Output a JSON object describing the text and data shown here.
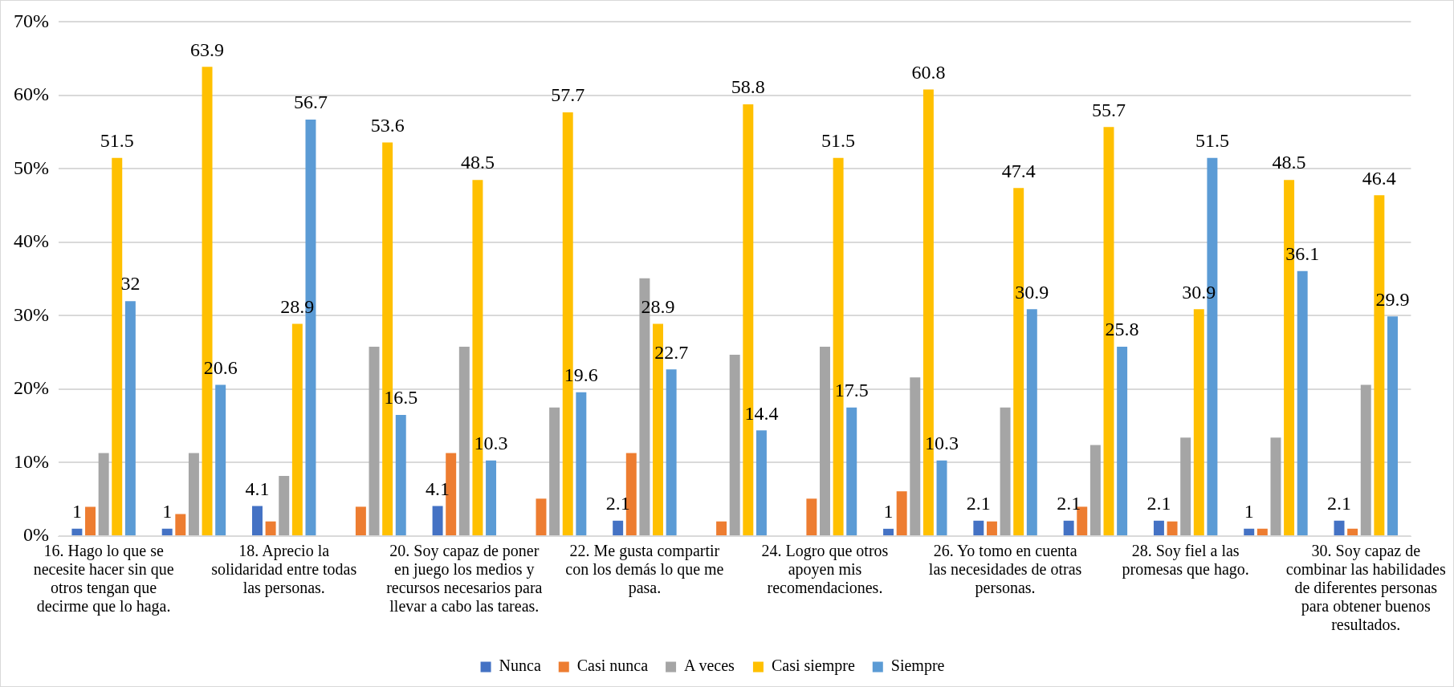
{
  "chart_data": {
    "type": "bar",
    "categories": [
      "16. Hago lo que se necesite hacer sin que otros tengan que decirme que lo haga.",
      null,
      "18. Aprecio la solidaridad entre todas las personas.",
      null,
      "20. Soy capaz de poner en juego los medios y recursos necesarios para llevar a cabo las tareas.",
      null,
      "22. Me gusta compartir con los demás lo que me pasa.",
      null,
      "24. Logro que otros apoyen mis recomendaciones.",
      null,
      "26. Yo tomo en cuenta las necesidades de otras personas.",
      null,
      "28. Soy fiel a las promesas que hago.",
      null,
      "30. Soy capaz de combinar las habilidades de diferentes personas para obtener buenos resultados."
    ],
    "series": [
      {
        "name": "Nunca",
        "color": "#4472c4",
        "values": [
          1,
          1,
          4.1,
          0,
          4.1,
          0,
          2.1,
          0,
          0,
          1,
          2.1,
          2.1,
          2.1,
          1,
          2.1
        ],
        "value_labels": [
          "1",
          "1",
          "4.1",
          null,
          "4.1",
          null,
          "2.1",
          null,
          null,
          "1",
          "2.1",
          "2.1",
          "2.1",
          "1",
          "2.1"
        ]
      },
      {
        "name": "Casi nunca",
        "color": "#ed7d31",
        "values": [
          4,
          3,
          2,
          4,
          11.3,
          5.1,
          11.3,
          2,
          5.1,
          6.1,
          2,
          4,
          2,
          1,
          1
        ]
      },
      {
        "name": "A veces",
        "color": "#a5a5a5",
        "values": [
          11.3,
          11.3,
          8.2,
          25.8,
          25.8,
          17.5,
          35.1,
          24.7,
          25.8,
          21.6,
          17.5,
          12.4,
          13.4,
          13.4,
          20.6
        ]
      },
      {
        "name": "Casi siempre",
        "color": "#ffc000",
        "values": [
          51.5,
          63.9,
          28.9,
          53.6,
          48.5,
          57.7,
          28.9,
          58.8,
          51.5,
          60.8,
          47.4,
          55.7,
          30.9,
          48.5,
          46.4
        ],
        "value_labels": [
          "51.5",
          "63.9",
          "28.9",
          "53.6",
          "48.5",
          "57.7",
          "28.9",
          "58.8",
          "51.5",
          "60.8",
          "47.4",
          "55.7",
          "30.9",
          "48.5",
          "46.4"
        ]
      },
      {
        "name": "Siempre",
        "color": "#5b9bd5",
        "values": [
          32,
          20.6,
          56.7,
          16.5,
          10.3,
          19.6,
          22.7,
          14.4,
          17.5,
          10.3,
          30.9,
          25.8,
          51.5,
          36.1,
          29.9
        ],
        "value_labels": [
          "32",
          "20.6",
          "56.7",
          "16.5",
          "10.3",
          "19.6",
          "22.7",
          "14.4",
          "17.5",
          "10.3",
          "30.9",
          "25.8",
          "51.5",
          "36.1",
          "29.9"
        ]
      }
    ],
    "ylim": [
      0,
      70
    ],
    "yticks": [
      {
        "value": 0,
        "label": "0%"
      },
      {
        "value": 10,
        "label": "10%"
      },
      {
        "value": 20,
        "label": "20%"
      },
      {
        "value": 30,
        "label": "30%"
      },
      {
        "value": 40,
        "label": "40%"
      },
      {
        "value": 50,
        "label": "50%"
      },
      {
        "value": 60,
        "label": "60%"
      },
      {
        "value": 70,
        "label": "70%"
      }
    ],
    "grid": "y",
    "legend": "bottom"
  }
}
